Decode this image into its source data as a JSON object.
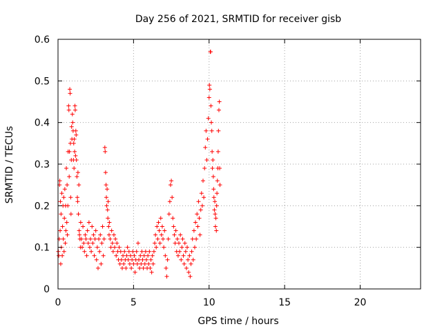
{
  "chart_data": {
    "type": "scatter",
    "title": "Day 256 of 2021, SRMTID for receiver gisb",
    "xlabel": "GPS time / hours",
    "ylabel": "SRMTID / TECUs",
    "xlim": [
      0,
      24
    ],
    "ylim": [
      0,
      0.6
    ],
    "xticks": [
      0,
      5,
      10,
      15,
      20
    ],
    "xtick_labels": [
      "0",
      "5",
      "10",
      "15",
      "20"
    ],
    "yticks": [
      0,
      0.1,
      0.2,
      0.3,
      0.4,
      0.5,
      0.6
    ],
    "ytick_labels": [
      "0",
      "0.1",
      "0.2",
      "0.3",
      "0.4",
      "0.5",
      "0.6"
    ],
    "grid": true,
    "marker": "plus",
    "marker_color": "#ff0000",
    "series": [
      {
        "name": "SRMTID",
        "color": "#ff0000",
        "points": [
          [
            0.02,
            0.09
          ],
          [
            0.05,
            0.08
          ],
          [
            0.08,
            0.12
          ],
          [
            0.1,
            0.25
          ],
          [
            0.12,
            0.26
          ],
          [
            0.14,
            0.14
          ],
          [
            0.16,
            0.21
          ],
          [
            0.18,
            0.06
          ],
          [
            0.2,
            0.18
          ],
          [
            0.22,
            0.1
          ],
          [
            0.25,
            0.23
          ],
          [
            0.28,
            0.08
          ],
          [
            0.3,
            0.15
          ],
          [
            0.33,
            0.2
          ],
          [
            0.35,
            0.12
          ],
          [
            0.38,
            0.22
          ],
          [
            0.4,
            0.09
          ],
          [
            0.42,
            0.17
          ],
          [
            0.45,
            0.24
          ],
          [
            0.48,
            0.11
          ],
          [
            0.5,
            0.2
          ],
          [
            0.52,
            0.14
          ],
          [
            0.55,
            0.29
          ],
          [
            0.58,
            0.16
          ],
          [
            0.6,
            0.25
          ],
          [
            0.62,
            0.13
          ],
          [
            0.65,
            0.2
          ],
          [
            0.67,
            0.33
          ],
          [
            0.7,
            0.44
          ],
          [
            0.72,
            0.43
          ],
          [
            0.74,
            0.27
          ],
          [
            0.76,
            0.33
          ],
          [
            0.78,
            0.48
          ],
          [
            0.8,
            0.47
          ],
          [
            0.82,
            0.35
          ],
          [
            0.84,
            0.22
          ],
          [
            0.86,
            0.18
          ],
          [
            0.88,
            0.31
          ],
          [
            0.9,
            0.39
          ],
          [
            0.92,
            0.36
          ],
          [
            0.95,
            0.42
          ],
          [
            0.97,
            0.4
          ],
          [
            1.0,
            0.38
          ],
          [
            1.02,
            0.31
          ],
          [
            1.04,
            0.35
          ],
          [
            1.06,
            0.29
          ],
          [
            1.08,
            0.36
          ],
          [
            1.1,
            0.33
          ],
          [
            1.12,
            0.44
          ],
          [
            1.14,
            0.43
          ],
          [
            1.16,
            0.32
          ],
          [
            1.18,
            0.38
          ],
          [
            1.2,
            0.37
          ],
          [
            1.22,
            0.31
          ],
          [
            1.25,
            0.27
          ],
          [
            1.28,
            0.22
          ],
          [
            1.3,
            0.21
          ],
          [
            1.32,
            0.28
          ],
          [
            1.35,
            0.18
          ],
          [
            1.38,
            0.25
          ],
          [
            1.4,
            0.14
          ],
          [
            1.42,
            0.13
          ],
          [
            1.45,
            0.12
          ],
          [
            1.48,
            0.1
          ],
          [
            1.5,
            0.16
          ],
          [
            1.55,
            0.12
          ],
          [
            1.6,
            0.1
          ],
          [
            1.65,
            0.15
          ],
          [
            1.7,
            0.11
          ],
          [
            1.75,
            0.09
          ],
          [
            1.8,
            0.13
          ],
          [
            1.85,
            0.12
          ],
          [
            1.9,
            0.08
          ],
          [
            1.95,
            0.14
          ],
          [
            2.0,
            0.11
          ],
          [
            2.05,
            0.16
          ],
          [
            2.1,
            0.1
          ],
          [
            2.15,
            0.12
          ],
          [
            2.2,
            0.09
          ],
          [
            2.25,
            0.15
          ],
          [
            2.3,
            0.11
          ],
          [
            2.35,
            0.13
          ],
          [
            2.4,
            0.08
          ],
          [
            2.45,
            0.12
          ],
          [
            2.5,
            0.14
          ],
          [
            2.55,
            0.07
          ],
          [
            2.6,
            0.1
          ],
          [
            2.65,
            0.05
          ],
          [
            2.7,
            0.12
          ],
          [
            2.75,
            0.09
          ],
          [
            2.8,
            0.13
          ],
          [
            2.85,
            0.06
          ],
          [
            2.9,
            0.11
          ],
          [
            2.95,
            0.15
          ],
          [
            3.0,
            0.08
          ],
          [
            3.05,
            0.12
          ],
          [
            3.1,
            0.34
          ],
          [
            3.12,
            0.33
          ],
          [
            3.15,
            0.28
          ],
          [
            3.18,
            0.25
          ],
          [
            3.2,
            0.22
          ],
          [
            3.22,
            0.2
          ],
          [
            3.25,
            0.24
          ],
          [
            3.28,
            0.19
          ],
          [
            3.3,
            0.17
          ],
          [
            3.32,
            0.21
          ],
          [
            3.35,
            0.15
          ],
          [
            3.38,
            0.13
          ],
          [
            3.4,
            0.16
          ],
          [
            3.45,
            0.12
          ],
          [
            3.5,
            0.1
          ],
          [
            3.55,
            0.14
          ],
          [
            3.6,
            0.11
          ],
          [
            3.65,
            0.09
          ],
          [
            3.7,
            0.13
          ],
          [
            3.75,
            0.1
          ],
          [
            3.8,
            0.12
          ],
          [
            3.85,
            0.08
          ],
          [
            3.9,
            0.11
          ],
          [
            3.95,
            0.09
          ],
          [
            4.0,
            0.07
          ],
          [
            4.05,
            0.1
          ],
          [
            4.1,
            0.06
          ],
          [
            4.15,
            0.09
          ],
          [
            4.2,
            0.07
          ],
          [
            4.25,
            0.05
          ],
          [
            4.3,
            0.08
          ],
          [
            4.35,
            0.06
          ],
          [
            4.4,
            0.09
          ],
          [
            4.45,
            0.07
          ],
          [
            4.5,
            0.05
          ],
          [
            4.55,
            0.08
          ],
          [
            4.6,
            0.1
          ],
          [
            4.65,
            0.07
          ],
          [
            4.7,
            0.09
          ],
          [
            4.75,
            0.06
          ],
          [
            4.8,
            0.08
          ],
          [
            4.85,
            0.05
          ],
          [
            4.9,
            0.07
          ],
          [
            4.95,
            0.09
          ],
          [
            5.0,
            0.06
          ],
          [
            5.05,
            0.08
          ],
          [
            5.1,
            0.04
          ],
          [
            5.15,
            0.07
          ],
          [
            5.2,
            0.09
          ],
          [
            5.25,
            0.06
          ],
          [
            5.3,
            0.11
          ],
          [
            5.35,
            0.07
          ],
          [
            5.4,
            0.05
          ],
          [
            5.45,
            0.08
          ],
          [
            5.5,
            0.06
          ],
          [
            5.55,
            0.09
          ],
          [
            5.6,
            0.07
          ],
          [
            5.65,
            0.05
          ],
          [
            5.7,
            0.08
          ],
          [
            5.75,
            0.06
          ],
          [
            5.8,
            0.09
          ],
          [
            5.85,
            0.07
          ],
          [
            5.9,
            0.05
          ],
          [
            5.95,
            0.08
          ],
          [
            6.0,
            0.06
          ],
          [
            6.05,
            0.09
          ],
          [
            6.1,
            0.05
          ],
          [
            6.15,
            0.07
          ],
          [
            6.2,
            0.04
          ],
          [
            6.25,
            0.08
          ],
          [
            6.3,
            0.06
          ],
          [
            6.35,
            0.09
          ],
          [
            6.4,
            0.11
          ],
          [
            6.45,
            0.13
          ],
          [
            6.5,
            0.1
          ],
          [
            6.55,
            0.15
          ],
          [
            6.6,
            0.12
          ],
          [
            6.65,
            0.16
          ],
          [
            6.7,
            0.14
          ],
          [
            6.75,
            0.11
          ],
          [
            6.8,
            0.17
          ],
          [
            6.85,
            0.13
          ],
          [
            6.9,
            0.15
          ],
          [
            6.95,
            0.12
          ],
          [
            7.0,
            0.1
          ],
          [
            7.05,
            0.14
          ],
          [
            7.1,
            0.08
          ],
          [
            7.15,
            0.05
          ],
          [
            7.2,
            0.03
          ],
          [
            7.25,
            0.07
          ],
          [
            7.3,
            0.12
          ],
          [
            7.35,
            0.18
          ],
          [
            7.4,
            0.21
          ],
          [
            7.45,
            0.25
          ],
          [
            7.5,
            0.26
          ],
          [
            7.55,
            0.22
          ],
          [
            7.6,
            0.17
          ],
          [
            7.65,
            0.15
          ],
          [
            7.7,
            0.13
          ],
          [
            7.75,
            0.11
          ],
          [
            7.8,
            0.14
          ],
          [
            7.85,
            0.09
          ],
          [
            7.9,
            0.12
          ],
          [
            7.95,
            0.08
          ],
          [
            8.0,
            0.11
          ],
          [
            8.05,
            0.09
          ],
          [
            8.1,
            0.13
          ],
          [
            8.15,
            0.07
          ],
          [
            8.2,
            0.1
          ],
          [
            8.25,
            0.12
          ],
          [
            8.3,
            0.08
          ],
          [
            8.35,
            0.06
          ],
          [
            8.4,
            0.11
          ],
          [
            8.45,
            0.09
          ],
          [
            8.5,
            0.05
          ],
          [
            8.55,
            0.1
          ],
          [
            8.6,
            0.07
          ],
          [
            8.65,
            0.04
          ],
          [
            8.7,
            0.08
          ],
          [
            8.75,
            0.03
          ],
          [
            8.8,
            0.06
          ],
          [
            8.85,
            0.09
          ],
          [
            8.9,
            0.12
          ],
          [
            8.95,
            0.07
          ],
          [
            9.0,
            0.14
          ],
          [
            9.05,
            0.1
          ],
          [
            9.1,
            0.16
          ],
          [
            9.15,
            0.12
          ],
          [
            9.2,
            0.18
          ],
          [
            9.25,
            0.15
          ],
          [
            9.3,
            0.21
          ],
          [
            9.35,
            0.17
          ],
          [
            9.4,
            0.13
          ],
          [
            9.45,
            0.19
          ],
          [
            9.5,
            0.23
          ],
          [
            9.55,
            0.2
          ],
          [
            9.6,
            0.26
          ],
          [
            9.65,
            0.22
          ],
          [
            9.7,
            0.29
          ],
          [
            9.75,
            0.34
          ],
          [
            9.8,
            0.38
          ],
          [
            9.85,
            0.31
          ],
          [
            9.9,
            0.36
          ],
          [
            9.95,
            0.41
          ],
          [
            10.0,
            0.46
          ],
          [
            10.02,
            0.49
          ],
          [
            10.05,
            0.48
          ],
          [
            10.08,
            0.57
          ],
          [
            10.1,
            0.57
          ],
          [
            10.12,
            0.44
          ],
          [
            10.15,
            0.4
          ],
          [
            10.18,
            0.38
          ],
          [
            10.2,
            0.33
          ],
          [
            10.22,
            0.29
          ],
          [
            10.25,
            0.31
          ],
          [
            10.28,
            0.27
          ],
          [
            10.3,
            0.24
          ],
          [
            10.32,
            0.22
          ],
          [
            10.35,
            0.19
          ],
          [
            10.38,
            0.21
          ],
          [
            10.4,
            0.18
          ],
          [
            10.42,
            0.15
          ],
          [
            10.45,
            0.17
          ],
          [
            10.48,
            0.14
          ],
          [
            10.5,
            0.2
          ],
          [
            10.52,
            0.23
          ],
          [
            10.55,
            0.26
          ],
          [
            10.58,
            0.29
          ],
          [
            10.6,
            0.33
          ],
          [
            10.62,
            0.38
          ],
          [
            10.65,
            0.43
          ],
          [
            10.68,
            0.45
          ],
          [
            10.7,
            0.29
          ],
          [
            10.72,
            0.25
          ]
        ]
      }
    ]
  }
}
